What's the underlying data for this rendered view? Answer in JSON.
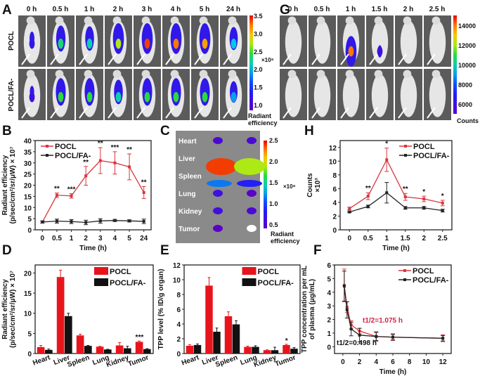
{
  "colors": {
    "pocl": "#e8141c",
    "pocl_fa": "#111111",
    "pocl_line": "#d9363e",
    "t_half_pocl": "#d4204a"
  },
  "panel_labels": [
    "A",
    "B",
    "C",
    "D",
    "E",
    "F",
    "G",
    "H"
  ],
  "panel_a": {
    "times": [
      "0 h",
      "0.5 h",
      "1 h",
      "2 h",
      "3 h",
      "4 h",
      "5 h",
      "24 h"
    ],
    "rows": [
      "POCL",
      "POCL/FA-"
    ],
    "signal_pocl": [
      0.15,
      0.55,
      0.5,
      0.7,
      0.95,
      0.9,
      0.85,
      0.45
    ],
    "signal_fa": [
      0.1,
      0.6,
      0.6,
      0.5,
      0.6,
      0.6,
      0.6,
      0.4
    ],
    "colorbar": {
      "ticks": [
        "3.5",
        "3.0",
        "2.5",
        "2.0",
        "1.5",
        "1.0"
      ],
      "multiplier": "×10⁸",
      "label_1": "Radiant",
      "label_2": "efficiency"
    }
  },
  "panel_c": {
    "organs": [
      "Heart",
      "Liver",
      "Spleen",
      "Lung",
      "Kidney",
      "Tumor"
    ],
    "colorbar": {
      "ticks": [
        "2.5",
        "2.0",
        "1.5",
        "1.0",
        "0.5"
      ],
      "multiplier": "×10⁸",
      "label_1": "Radiant",
      "label_2": "efficiency"
    }
  },
  "panel_g": {
    "times": [
      "0 h",
      "0.5 h",
      "1 h",
      "1.5 h",
      "2 h",
      "2.5 h"
    ],
    "colorbar": {
      "ticks": [
        "14000",
        "12000",
        "10000",
        "8000",
        "6000"
      ],
      "label": "Counts"
    }
  },
  "chart_data": [
    {
      "id": "B",
      "type": "line",
      "categories": [
        "0",
        "0.5",
        "1",
        "2",
        "3",
        "4",
        "5",
        "24"
      ],
      "xlabel": "Time (h)",
      "ylabel_1": "Radiant efficiency",
      "ylabel_2": "(p/sec/cm²/sr/μW) × 10⁷",
      "ylim": [
        0,
        40
      ],
      "yticks": [
        "0",
        "5",
        "10",
        "15",
        "20",
        "25",
        "30",
        "35",
        "40"
      ],
      "series": [
        {
          "name": "POCL",
          "values": [
            3.5,
            15.5,
            15.2,
            24.2,
            31,
            30,
            28.2,
            16.7
          ],
          "errors": [
            0.5,
            1,
            1,
            4.2,
            5.8,
            5,
            5.8,
            2.7
          ]
        },
        {
          "name": "POCL/FA-",
          "values": [
            3.5,
            3.9,
            3.7,
            3.3,
            4,
            4.2,
            4,
            3.8
          ],
          "errors": [
            0.5,
            0.9,
            0.9,
            1,
            1,
            0.5,
            0.5,
            1
          ]
        }
      ],
      "annotations": [
        "",
        "**",
        "***",
        "**",
        "**",
        "***",
        "**",
        "**"
      ],
      "legend": "top-left"
    },
    {
      "id": "H",
      "type": "line",
      "x": [
        0,
        0.5,
        1,
        1.5,
        2,
        2.5
      ],
      "xticks": [
        "0",
        "0.5",
        "1",
        "1.5",
        "2",
        "2.5"
      ],
      "xlabel": "Time (h)",
      "ylabel_1": "Counts",
      "ylabel_2": "×10³",
      "ylim": [
        0,
        13
      ],
      "yticks": [
        "0",
        "2",
        "4",
        "6",
        "8",
        "10",
        "12"
      ],
      "series": [
        {
          "name": "POCL",
          "values": [
            3.1,
            4.9,
            10.2,
            4.8,
            4.5,
            3.9
          ],
          "errors": [
            0.2,
            0.5,
            1.7,
            0.5,
            0.4,
            0.4
          ]
        },
        {
          "name": "POCL/FA-",
          "values": [
            2.6,
            3.4,
            5.4,
            3.2,
            3.2,
            2.8
          ],
          "errors": [
            0.1,
            0.2,
            1.5,
            0.2,
            0.2,
            0.2
          ]
        }
      ],
      "annotations": [
        "",
        "**",
        "*",
        "**",
        "*",
        "*"
      ],
      "legend": "top-right"
    },
    {
      "id": "D",
      "type": "bar",
      "categories": [
        "Heart",
        "Liver",
        "Spleen",
        "Lung",
        "Kidney",
        "Tumor"
      ],
      "ylabel_1": "Radiant efficiency",
      "ylabel_2": "(p/sec/cm²/sr/μW) × 10⁷",
      "ylim": [
        0,
        22
      ],
      "yticks": [
        "0",
        "5",
        "10",
        "15",
        "20"
      ],
      "series": [
        {
          "name": "POCL",
          "values": [
            1.6,
            19,
            4.5,
            1.7,
            2,
            2.9
          ],
          "errors": [
            0.4,
            1.7,
            0.3,
            0.1,
            0.7,
            0.2
          ]
        },
        {
          "name": "POCL/FA-",
          "values": [
            0.9,
            9.3,
            1.9,
            1,
            1.3,
            1.1
          ],
          "errors": [
            0.2,
            0.7,
            0.1,
            0.05,
            0.5,
            0.1
          ]
        }
      ],
      "annotations": [
        "",
        "",
        "",
        "",
        "",
        "***"
      ],
      "legend": "top-right"
    },
    {
      "id": "E",
      "type": "bar",
      "categories": [
        "Heart",
        "Liver",
        "Spleen",
        "Lung",
        "Kidney",
        "Tumor"
      ],
      "ylabel_1": "TPP level (% ID/g organ)",
      "ylabel_2": "",
      "ylim": [
        0,
        12
      ],
      "yticks": [
        "0",
        "2",
        "4",
        "6",
        "8",
        "10",
        "12"
      ],
      "series": [
        {
          "name": "POCL",
          "values": [
            1.05,
            9.2,
            5.05,
            0.9,
            0.45,
            1.15
          ],
          "errors": [
            0.15,
            1.1,
            0.6,
            0.1,
            0.05,
            0.1
          ]
        },
        {
          "name": "POCL/FA-",
          "values": [
            1.15,
            2.95,
            3.95,
            0.9,
            0.45,
            0.65
          ],
          "errors": [
            0.15,
            0.5,
            0.5,
            0.15,
            0.4,
            0.15
          ]
        }
      ],
      "annotations": [
        "",
        "",
        "",
        "",
        "",
        "*"
      ],
      "legend": "top-right"
    },
    {
      "id": "F",
      "type": "line",
      "x": [
        0.17,
        0.5,
        1,
        2,
        4,
        6,
        12
      ],
      "xlim": [
        -1,
        13
      ],
      "xticks": [
        "0",
        "2",
        "4",
        "6",
        "8",
        "10",
        "12"
      ],
      "xlabel": "Time (h)",
      "ylabel_1": "TPP concentration per mL",
      "ylabel_2": "of plasma (μg/mL)",
      "ylim": [
        -0.5,
        6
      ],
      "yticks": [
        "0",
        "1",
        "2",
        "3",
        "4",
        "5",
        "6"
      ],
      "series": [
        {
          "name": "POCL",
          "values": [
            4.5,
            2.9,
            1.6,
            1.15,
            0.75,
            0.7,
            0.62
          ],
          "errors": [
            1.2,
            0.4,
            0.3,
            0.2,
            0.35,
            0.25,
            0.25
          ]
        },
        {
          "name": "POCL/FA-",
          "values": [
            4.45,
            2.7,
            1.3,
            0.85,
            0.75,
            0.7,
            0.62
          ],
          "errors": [
            1.1,
            0.6,
            0.5,
            0.5,
            0.3,
            0.2,
            0.2
          ]
        }
      ],
      "t_half_pocl": "t1/2=1.075 h",
      "t_half_fa": "t1/2=0.498 h",
      "legend": "top-right"
    }
  ]
}
